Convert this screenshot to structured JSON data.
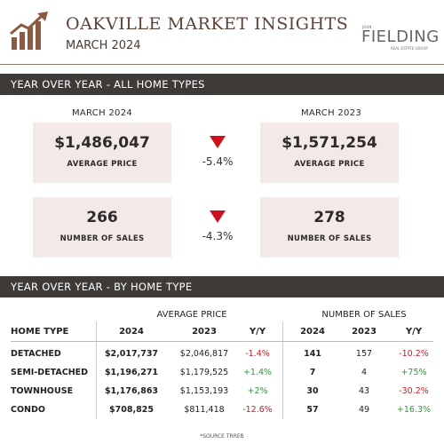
{
  "header": {
    "title": "OAKVILLE MARKET INSIGHTS",
    "subtitle": "MARCH 2024",
    "brand_top": "JOHN",
    "brand": "FIELDING",
    "brand_bottom": "REAL ESTATE GROUP"
  },
  "section1": {
    "title": "YEAR OVER YEAR - ALL HOME TYPES",
    "col_current": "MARCH 2024",
    "col_previous": "MARCH 2023",
    "metrics": [
      {
        "current": "$1,486,047",
        "previous": "$1,571,254",
        "label": "AVERAGE PRICE",
        "change": "-5.4%"
      },
      {
        "current": "266",
        "previous": "278",
        "label": "NUMBER OF SALES",
        "change": "-4.3%"
      }
    ]
  },
  "section2": {
    "title": "YEAR OVER YEAR - BY HOME TYPE",
    "group_price": "AVERAGE PRICE",
    "group_sales": "NUMBER OF SALES",
    "columns": [
      "HOME TYPE",
      "2024",
      "2023",
      "Y/Y",
      "2024",
      "2023",
      "Y/Y"
    ],
    "rows": [
      [
        "DETACHED",
        "$2,017,737",
        "$2,046,817",
        "-1.4%",
        "141",
        "157",
        "-10.2%"
      ],
      [
        "SEMI-DETACHED",
        "$1,196,271",
        "$1,179,525",
        "+1.4%",
        "7",
        "4",
        "+75%"
      ],
      [
        "TOWNHOUSE",
        "$1,176,863",
        "$1,153,193",
        "+2%",
        "30",
        "43",
        "-30.2%"
      ],
      [
        "CONDO",
        "$708,825",
        "$811,418",
        "-12.6%",
        "57",
        "49",
        "+16.3%"
      ]
    ]
  },
  "footer": {
    "source": "*SOURCE TRREB"
  }
}
